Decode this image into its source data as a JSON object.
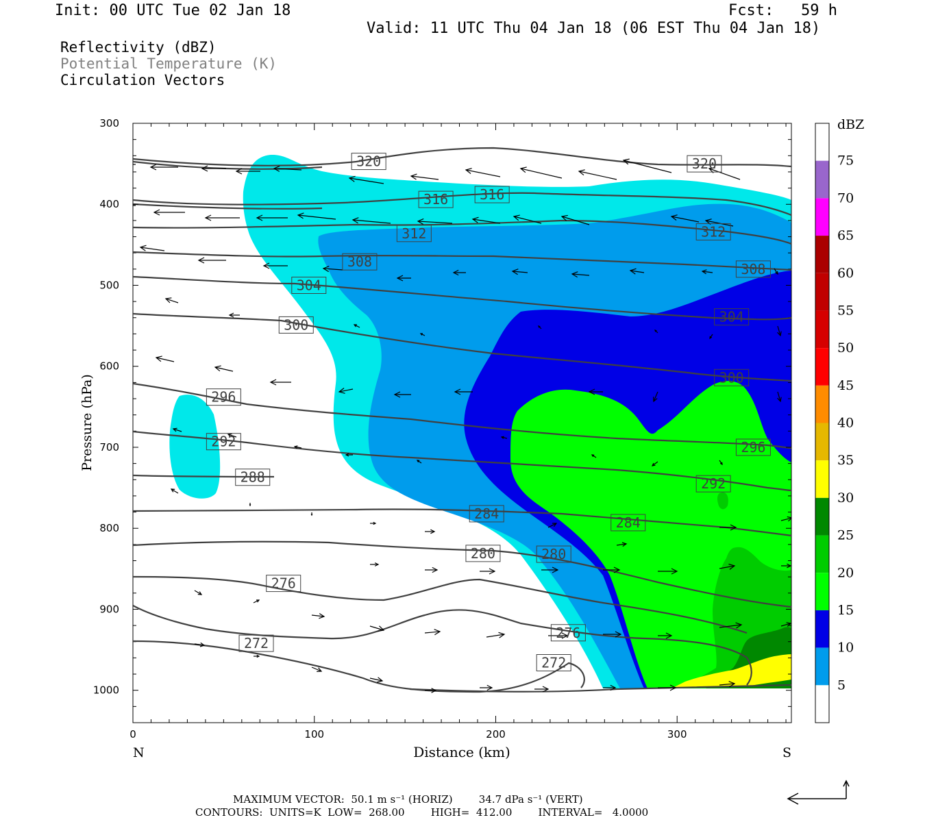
{
  "header": {
    "init": "Init: 00 UTC Tue 02 Jan 18",
    "fcst": "Fcst:   59 h",
    "valid": "Valid: 11 UTC Thu 04 Jan 18 (06 EST Thu 04 Jan 18)",
    "legend_lines": [
      "Reflectivity (dBZ)",
      "Potential Temperature (K)",
      "Circulation Vectors"
    ]
  },
  "footer": {
    "line1": "MAXIMUM VECTOR:  50.1 m s⁻¹ (HORIZ)        34.7 dPa s⁻¹ (VERT)",
    "line2": "CONTOURS:  UNITS=K  LOW=  268.00        HIGH=  412.00        INTERVAL=   4.0000"
  },
  "colors": {
    "5": "#00e8ea",
    "10": "#009cec",
    "15": "#0000e6",
    "20": "#00ff00",
    "25": "#00cc00",
    "30": "#008800",
    "35": "#ffff00",
    "40": "#e6b800",
    "45": "#ff8c00",
    "50": "#ff0000",
    "55": "#d60000",
    "60": "#c00000",
    "65": "#aa0000",
    "70": "#ff00ff",
    "75": "#9966cc",
    "contour": "#404040",
    "vector": "#000000"
  },
  "chart_data": {
    "type": "cross-section",
    "title": "",
    "xlabel": "Distance (km)",
    "ylabel": "Pressure (hPa)",
    "xlim": [
      0,
      363
    ],
    "ylim": [
      1040,
      300
    ],
    "x_ticks": [
      0,
      100,
      200,
      300
    ],
    "y_ticks": [
      300,
      400,
      500,
      600,
      700,
      800,
      900,
      1000
    ],
    "x_end_labels": {
      "left": "N",
      "right": "S"
    },
    "colorbar": {
      "title": "dBZ",
      "levels": [
        5,
        10,
        15,
        20,
        25,
        30,
        35,
        40,
        45,
        50,
        55,
        60,
        65,
        70,
        75
      ]
    },
    "contour_labels": [
      {
        "value": "320",
        "x": 130,
        "p": 347
      },
      {
        "value": "320",
        "x": 315,
        "p": 350
      },
      {
        "value": "316",
        "x": 167,
        "p": 394
      },
      {
        "value": "316",
        "x": 198,
        "p": 388
      },
      {
        "value": "312",
        "x": 155,
        "p": 436
      },
      {
        "value": "312",
        "x": 320,
        "p": 434
      },
      {
        "value": "308",
        "x": 125,
        "p": 471
      },
      {
        "value": "308",
        "x": 342,
        "p": 480
      },
      {
        "value": "304",
        "x": 97,
        "p": 500
      },
      {
        "value": "304",
        "x": 330,
        "p": 539
      },
      {
        "value": "300",
        "x": 90,
        "p": 549
      },
      {
        "value": "300",
        "x": 330,
        "p": 614
      },
      {
        "value": "296",
        "x": 50,
        "p": 638
      },
      {
        "value": "296",
        "x": 342,
        "p": 700
      },
      {
        "value": "292",
        "x": 50,
        "p": 693
      },
      {
        "value": "292",
        "x": 320,
        "p": 745
      },
      {
        "value": "288",
        "x": 66,
        "p": 737
      },
      {
        "value": "284",
        "x": 195,
        "p": 782
      },
      {
        "value": "284",
        "x": 273,
        "p": 793
      },
      {
        "value": "280",
        "x": 193,
        "p": 831
      },
      {
        "value": "280",
        "x": 232,
        "p": 832
      },
      {
        "value": "276",
        "x": 83,
        "p": 868
      },
      {
        "value": "276",
        "x": 240,
        "p": 929
      },
      {
        "value": "272",
        "x": 68,
        "p": 942
      },
      {
        "value": "272",
        "x": 232,
        "p": 966
      }
    ]
  }
}
